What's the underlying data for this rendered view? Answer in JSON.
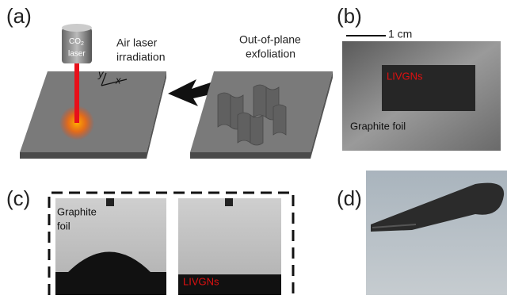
{
  "panel_a": {
    "label": "(a)",
    "laser": {
      "co": "CO",
      "sub": "2",
      "word": "laser"
    },
    "step1": [
      "Air laser",
      "irradiation"
    ],
    "step2": [
      "Out-of-plane",
      "exfoliation"
    ],
    "axis_y": "y",
    "axis_x": "x"
  },
  "panel_b": {
    "label": "(b)",
    "scale": "1 cm",
    "region": "LIVGNs",
    "foil": "Graphite foil"
  },
  "panel_c": {
    "label": "(c)",
    "left": [
      "Graphite",
      "foil"
    ],
    "right": "LIVGNs"
  },
  "panel_d": {
    "label": "(d)"
  }
}
